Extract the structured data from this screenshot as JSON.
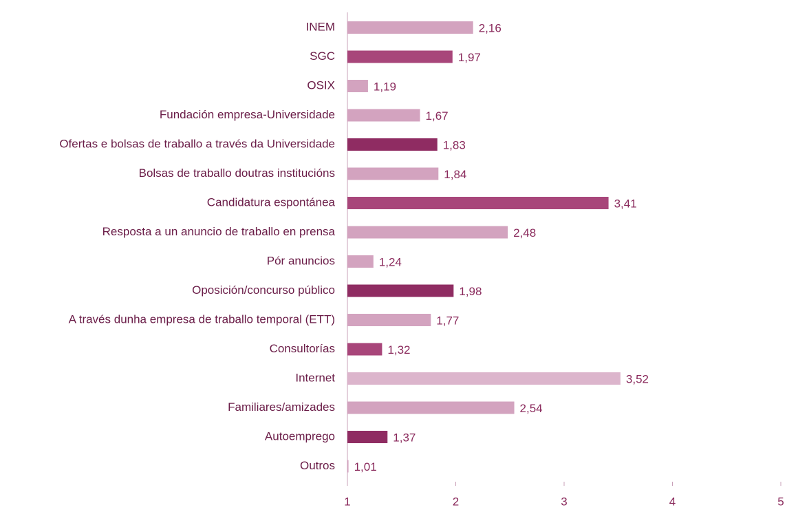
{
  "chart_data": {
    "type": "barh",
    "categories": [
      "INEM",
      "SGC",
      "OSIX",
      "Fundación empresa-Universidade",
      "Ofertas e bolsas de traballo a través da Universidade",
      "Bolsas de traballo doutras institucións",
      "Candidatura espontánea",
      "Resposta a un anuncio de traballo en prensa",
      "Pór anuncios",
      "Oposición/concurso público",
      "A través dunha empresa de traballo temporal (ETT)",
      "Consultorías",
      "Internet",
      "Familiares/amizades",
      "Autoemprego",
      "Outros"
    ],
    "values": [
      2.16,
      1.97,
      1.19,
      1.67,
      1.83,
      1.84,
      3.41,
      2.48,
      1.24,
      1.98,
      1.77,
      1.32,
      3.52,
      2.54,
      1.37,
      1.01
    ],
    "value_labels": [
      "2,16",
      "1,97",
      "1,19",
      "1,67",
      "1,83",
      "1,84",
      "3,41",
      "2,48",
      "1,24",
      "1,98",
      "1,77",
      "1,32",
      "3,52",
      "2,54",
      "1,37",
      "1,01"
    ],
    "colors": [
      "#d3a3bf",
      "#a8467a",
      "#d3a3bf",
      "#d3a3bf",
      "#8f2c62",
      "#d3a3bf",
      "#a8467a",
      "#d3a3bf",
      "#d3a3bf",
      "#8f2c62",
      "#d3a3bf",
      "#a8467a",
      "#dcb5cc",
      "#d3a3bf",
      "#8f2c62",
      "#d3a3bf"
    ],
    "xlim": [
      1,
      5
    ],
    "xticks": [
      1,
      2,
      3,
      4,
      5
    ]
  }
}
